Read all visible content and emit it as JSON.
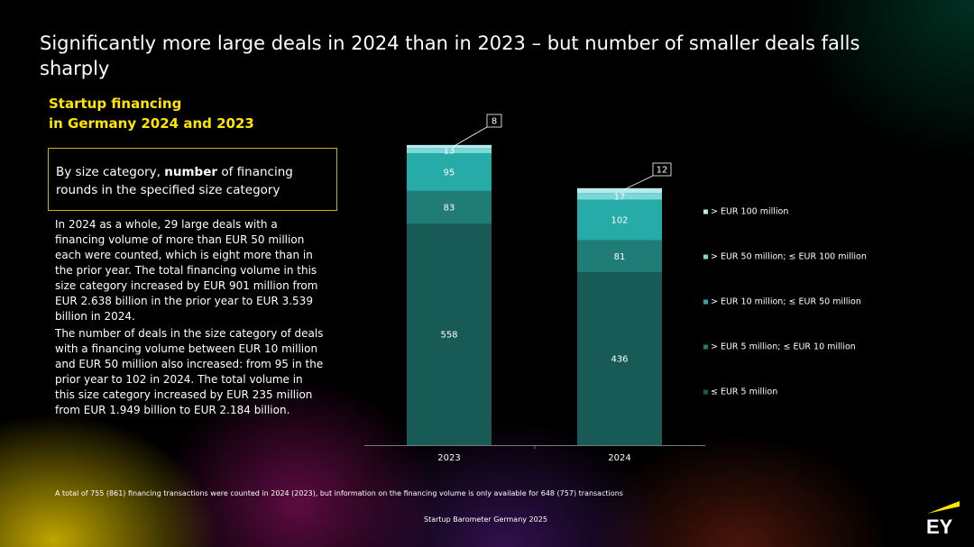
{
  "title": "Significantly more large deals in 2024 than in 2023 – but number of smaller deals falls sharply",
  "subtitle": {
    "line1": "Startup financing",
    "line2": "in Germany 2024 and 2023"
  },
  "description": {
    "before": "By size category, ",
    "bold": "number",
    "after": " of financing rounds in the specified size category"
  },
  "paragraphs": [
    "In 2024 as a whole, 29 large deals with a financing volume of more than EUR 50 million each were counted, which is eight more than in the prior year. The total financing volume in this size category increased by EUR 901 million from EUR 2.638 billion in the prior year to EUR 3.539 billion in 2024.",
    "The number of deals in the size category of deals with a financing volume between EUR 10 million and EUR 50 million also increased: from 95 in the prior year to 102 in 2024. The total volume in this size category increased by EUR 235 million from EUR 1.949 billion to EUR 2.184 billion."
  ],
  "footnote": "A total of 755 (861) financing transactions were counted in 2024 (2023), but information on the financing volume is only available for 648 (757) transactions",
  "source": "Startup Barometer Germany 2025",
  "logo_text": "EY",
  "colors": {
    "s1": "#175a56",
    "s2": "#1f7c76",
    "s3": "#27aba8",
    "s4": "#7ad8d8",
    "s5": "#b7ebec",
    "accent": "#ffe600"
  },
  "chart_data": {
    "type": "bar",
    "stacked": true,
    "categories": [
      "2023",
      "2024"
    ],
    "series": [
      {
        "name": "≤ EUR 5 million",
        "values": [
          558,
          436
        ],
        "color_key": "s1"
      },
      {
        "name": "> EUR 5 million; ≤ EUR 10 million",
        "values": [
          83,
          81
        ],
        "color_key": "s2"
      },
      {
        "name": "> EUR 10 million; ≤ EUR 50 million",
        "values": [
          95,
          102
        ],
        "color_key": "s3"
      },
      {
        "name": "> EUR 50 million; ≤ EUR 100 million",
        "values": [
          13,
          17
        ],
        "color_key": "s4"
      },
      {
        "name": "> EUR 100 million",
        "values": [
          8,
          12
        ],
        "color_key": "s5"
      }
    ],
    "callouts": [
      "8",
      "12"
    ],
    "legend_position": "right",
    "xlabel": "",
    "ylabel": ""
  }
}
